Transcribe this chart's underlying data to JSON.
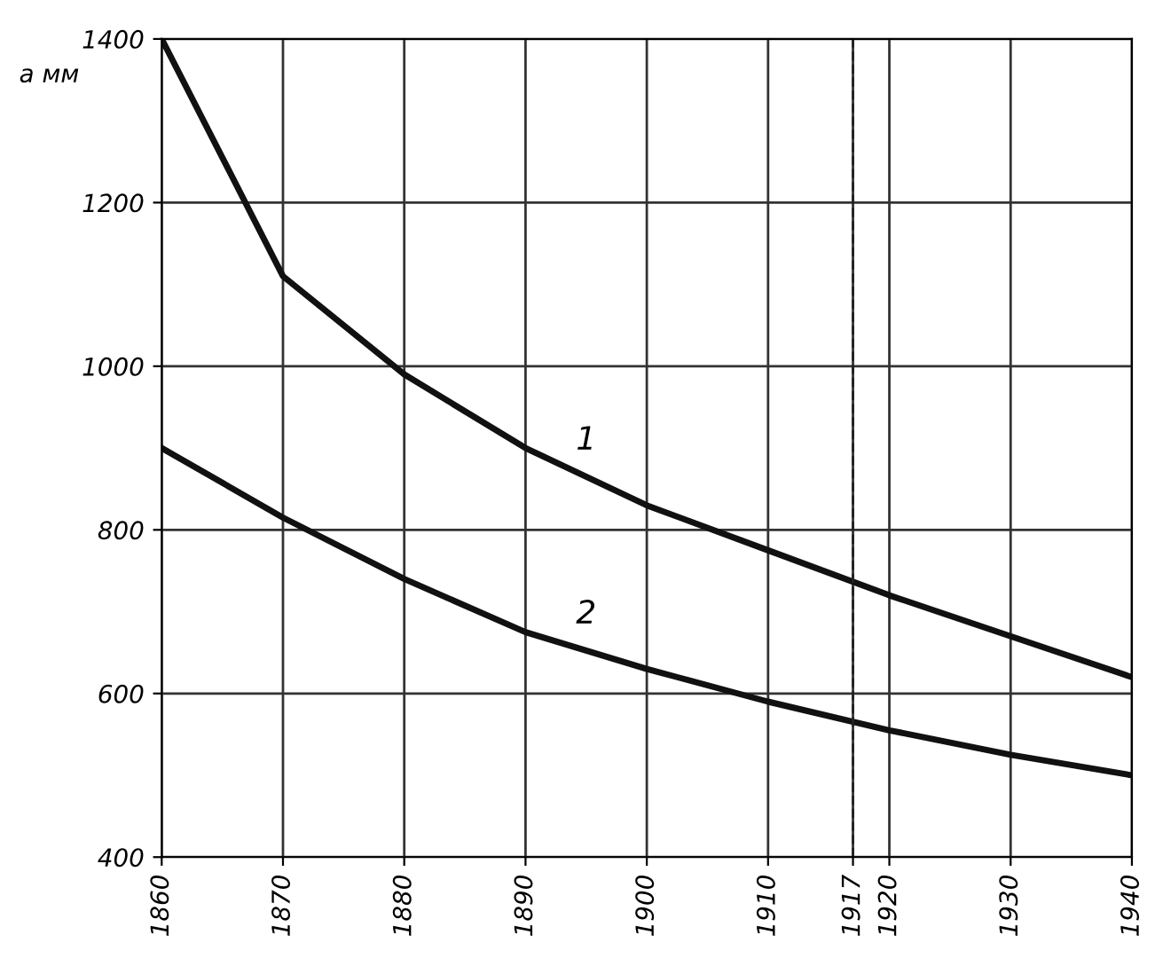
{
  "chart_data": {
    "type": "line",
    "ylabel": "a мм",
    "x": [
      1860,
      1870,
      1880,
      1890,
      1900,
      1910,
      1920,
      1930,
      1940
    ],
    "series": [
      {
        "name": "1",
        "color": "#111111",
        "values": [
          1400,
          1110,
          990,
          900,
          830,
          775,
          720,
          670,
          620
        ]
      },
      {
        "name": "2",
        "color": "#111111",
        "values": [
          900,
          815,
          740,
          675,
          630,
          590,
          555,
          525,
          500
        ]
      }
    ],
    "xlim": [
      1860,
      1940
    ],
    "ylim": [
      400,
      1400
    ],
    "xticks": [
      1860,
      1870,
      1880,
      1890,
      1900,
      1910,
      1917,
      1920,
      1930,
      1940
    ],
    "yticks": [
      400,
      600,
      800,
      1000,
      1200,
      1400
    ],
    "ref_lines": [
      {
        "axis": "x",
        "value": 1917,
        "label": null,
        "line_style": "dashed"
      }
    ],
    "grid": true,
    "marker": "none",
    "line_style": "solid"
  }
}
